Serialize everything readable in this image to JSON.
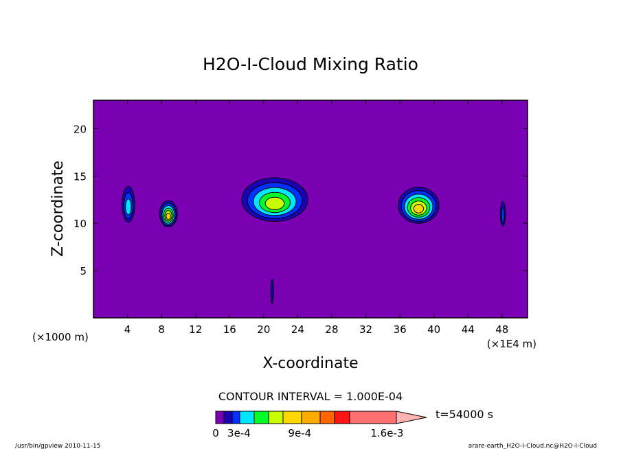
{
  "chart_data": {
    "type": "contour",
    "title": "H2O-I-Cloud Mixing Ratio",
    "xlabel": "X-coordinate",
    "ylabel": "Z-coordinate",
    "x_unit_label": "(×1E4 m)",
    "y_unit_label": "(×1000 m)",
    "x_ticks": [
      4,
      8,
      12,
      16,
      20,
      24,
      28,
      32,
      36,
      40,
      44,
      48
    ],
    "y_ticks": [
      5,
      10,
      15,
      20
    ],
    "xlim": [
      0,
      51
    ],
    "ylim": [
      0,
      23
    ],
    "contour_interval_text": "CONTOUR INTERVAL = 1.000E-04",
    "time_label": "t=54000 s",
    "colorbar_labels": [
      {
        "text": "0",
        "index": 0
      },
      {
        "text": "3e-4",
        "index": 2.9
      },
      {
        "text": "9e-4",
        "index": 6.9
      },
      {
        "text": "1.6e-3",
        "index": 10.8
      }
    ],
    "colorbar_colors": [
      "#7a00b4",
      "#1e00b4",
      "#0032ff",
      "#00e6ff",
      "#00ff2a",
      "#c8ff00",
      "#ffd700",
      "#ffaa00",
      "#ff6600",
      "#ff1414",
      "#ff7070"
    ],
    "background_color": "#7a00b4",
    "cloud_cells": [
      {
        "x": 4.1,
        "z": 12.0,
        "rx": 0.75,
        "rz": 1.9,
        "levels": 3
      },
      {
        "x": 8.8,
        "z": 11.0,
        "rx": 1.05,
        "rz": 1.4,
        "levels": 6
      },
      {
        "x": 21.3,
        "z": 12.5,
        "rx": 3.9,
        "rz": 2.3,
        "levels": 5
      },
      {
        "x": 38.2,
        "z": 11.9,
        "rx": 2.4,
        "rz": 1.9,
        "levels": 6
      },
      {
        "x": 48.1,
        "z": 11.0,
        "rx": 0.3,
        "rz": 1.3,
        "levels": 2
      },
      {
        "x": 21.0,
        "z": 2.8,
        "rx": 0.16,
        "rz": 1.3,
        "levels": 1
      }
    ],
    "footer_left": "/usr/bin/gpview   2010-11-15",
    "footer_right": "arare-earth_H2O-I-Cloud.nc@H2O-I-Cloud"
  }
}
